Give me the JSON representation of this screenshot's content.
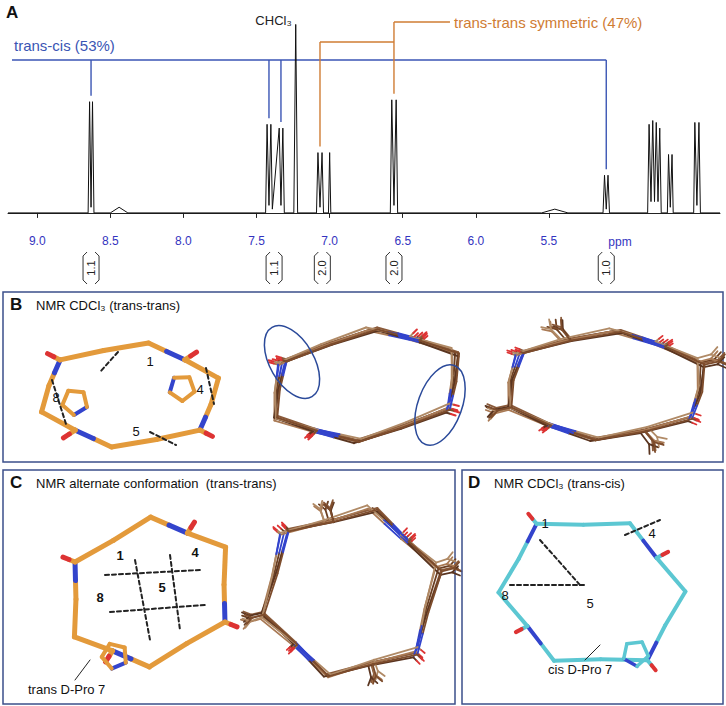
{
  "chart_data": {
    "type": "line",
    "x_label": "ppm",
    "color": "#111111",
    "x": [
      9.2,
      8.652,
      8.642,
      8.632,
      8.622,
      8.612,
      8.5,
      8.44,
      8.38,
      7.438,
      7.428,
      7.415,
      7.402,
      7.392,
      7.345,
      7.333,
      7.32,
      7.31,
      7.245,
      7.232,
      7.219,
      7.09,
      7.08,
      7.066,
      7.052,
      7.042,
      7.008,
      7.0,
      6.992,
      6.585,
      6.575,
      6.56,
      6.545,
      6.535,
      5.55,
      5.46,
      5.37,
      5.13,
      5.12,
      5.108,
      5.096,
      5.086,
      4.825,
      4.815,
      4.802,
      4.79,
      4.778,
      4.766,
      4.754,
      4.742,
      4.732,
      4.69,
      4.682,
      4.67,
      4.658,
      4.65,
      4.51,
      4.502,
      4.488,
      4.474,
      4.464,
      4.33
    ],
    "values": [
      0,
      0,
      59,
      3,
      59,
      0,
      0,
      3,
      0,
      0,
      47,
      4,
      47,
      2,
      45,
      4,
      45,
      0,
      0,
      100,
      0,
      0,
      32,
      3,
      32,
      0,
      0,
      32,
      0,
      0,
      60,
      4,
      60,
      0,
      0,
      2,
      0,
      0,
      20,
      2,
      20,
      0,
      0,
      47,
      6,
      49,
      6,
      48,
      6,
      45,
      0,
      0,
      31,
      3,
      31,
      0,
      0,
      48,
      4,
      48,
      0,
      0
    ],
    "xlim": [
      4.33,
      9.2
    ],
    "xticks": [
      {
        "value": 9,
        "label": "9.0"
      },
      {
        "value": 8.5,
        "label": "8.5"
      },
      {
        "value": 8,
        "label": "8.0"
      },
      {
        "value": 7.5,
        "label": "7.5"
      },
      {
        "value": 7,
        "label": "7.0"
      },
      {
        "value": 6.5,
        "label": "6.5"
      },
      {
        "value": 6,
        "label": "6.0"
      },
      {
        "value": 5.5,
        "label": "5.5"
      }
    ],
    "ylim": [
      -8,
      105
    ],
    "tick_labels": "x",
    "grid": false,
    "annotations": [
      {
        "text": "trans-cis (53%)",
        "color": "#3a55b4",
        "peaks": [
          8.632,
          7.415,
          7.333,
          5.108
        ]
      },
      {
        "text": "trans-trans symmetric (47%)",
        "color": "#cf7c33",
        "peaks": [
          7.066,
          6.56
        ]
      },
      {
        "text": "CHCl₃",
        "color": "#222222",
        "peaks": [
          7.232
        ]
      }
    ],
    "integrals": [
      {
        "ppm": 8.632,
        "value": 1.1
      },
      {
        "ppm": 7.38,
        "value": 1.1
      },
      {
        "ppm": 7.05,
        "value": 2,
        "label": "2.0"
      },
      {
        "ppm": 6.56,
        "value": 2,
        "label": "2.0"
      },
      {
        "ppm": 5.108,
        "value": 1,
        "label": "1.0"
      }
    ]
  },
  "panels": [
    {
      "label": "A"
    },
    {
      "label": "B",
      "title": "NMR CDCl₃ (trans-trans)",
      "residues": [
        "1",
        "8",
        "4",
        "5"
      ]
    },
    {
      "label": "C",
      "title": "NMR alternate conformation  (trans-trans)",
      "residues": [
        "1",
        "4",
        "5",
        "8"
      ],
      "annotation": "trans D-Pro 7"
    },
    {
      "label": "D",
      "title": "NMR CDCl₃ (trans-cis)",
      "residues": [
        "1",
        "4",
        "8",
        "5"
      ],
      "annotation": "cis D-Pro 7"
    }
  ]
}
